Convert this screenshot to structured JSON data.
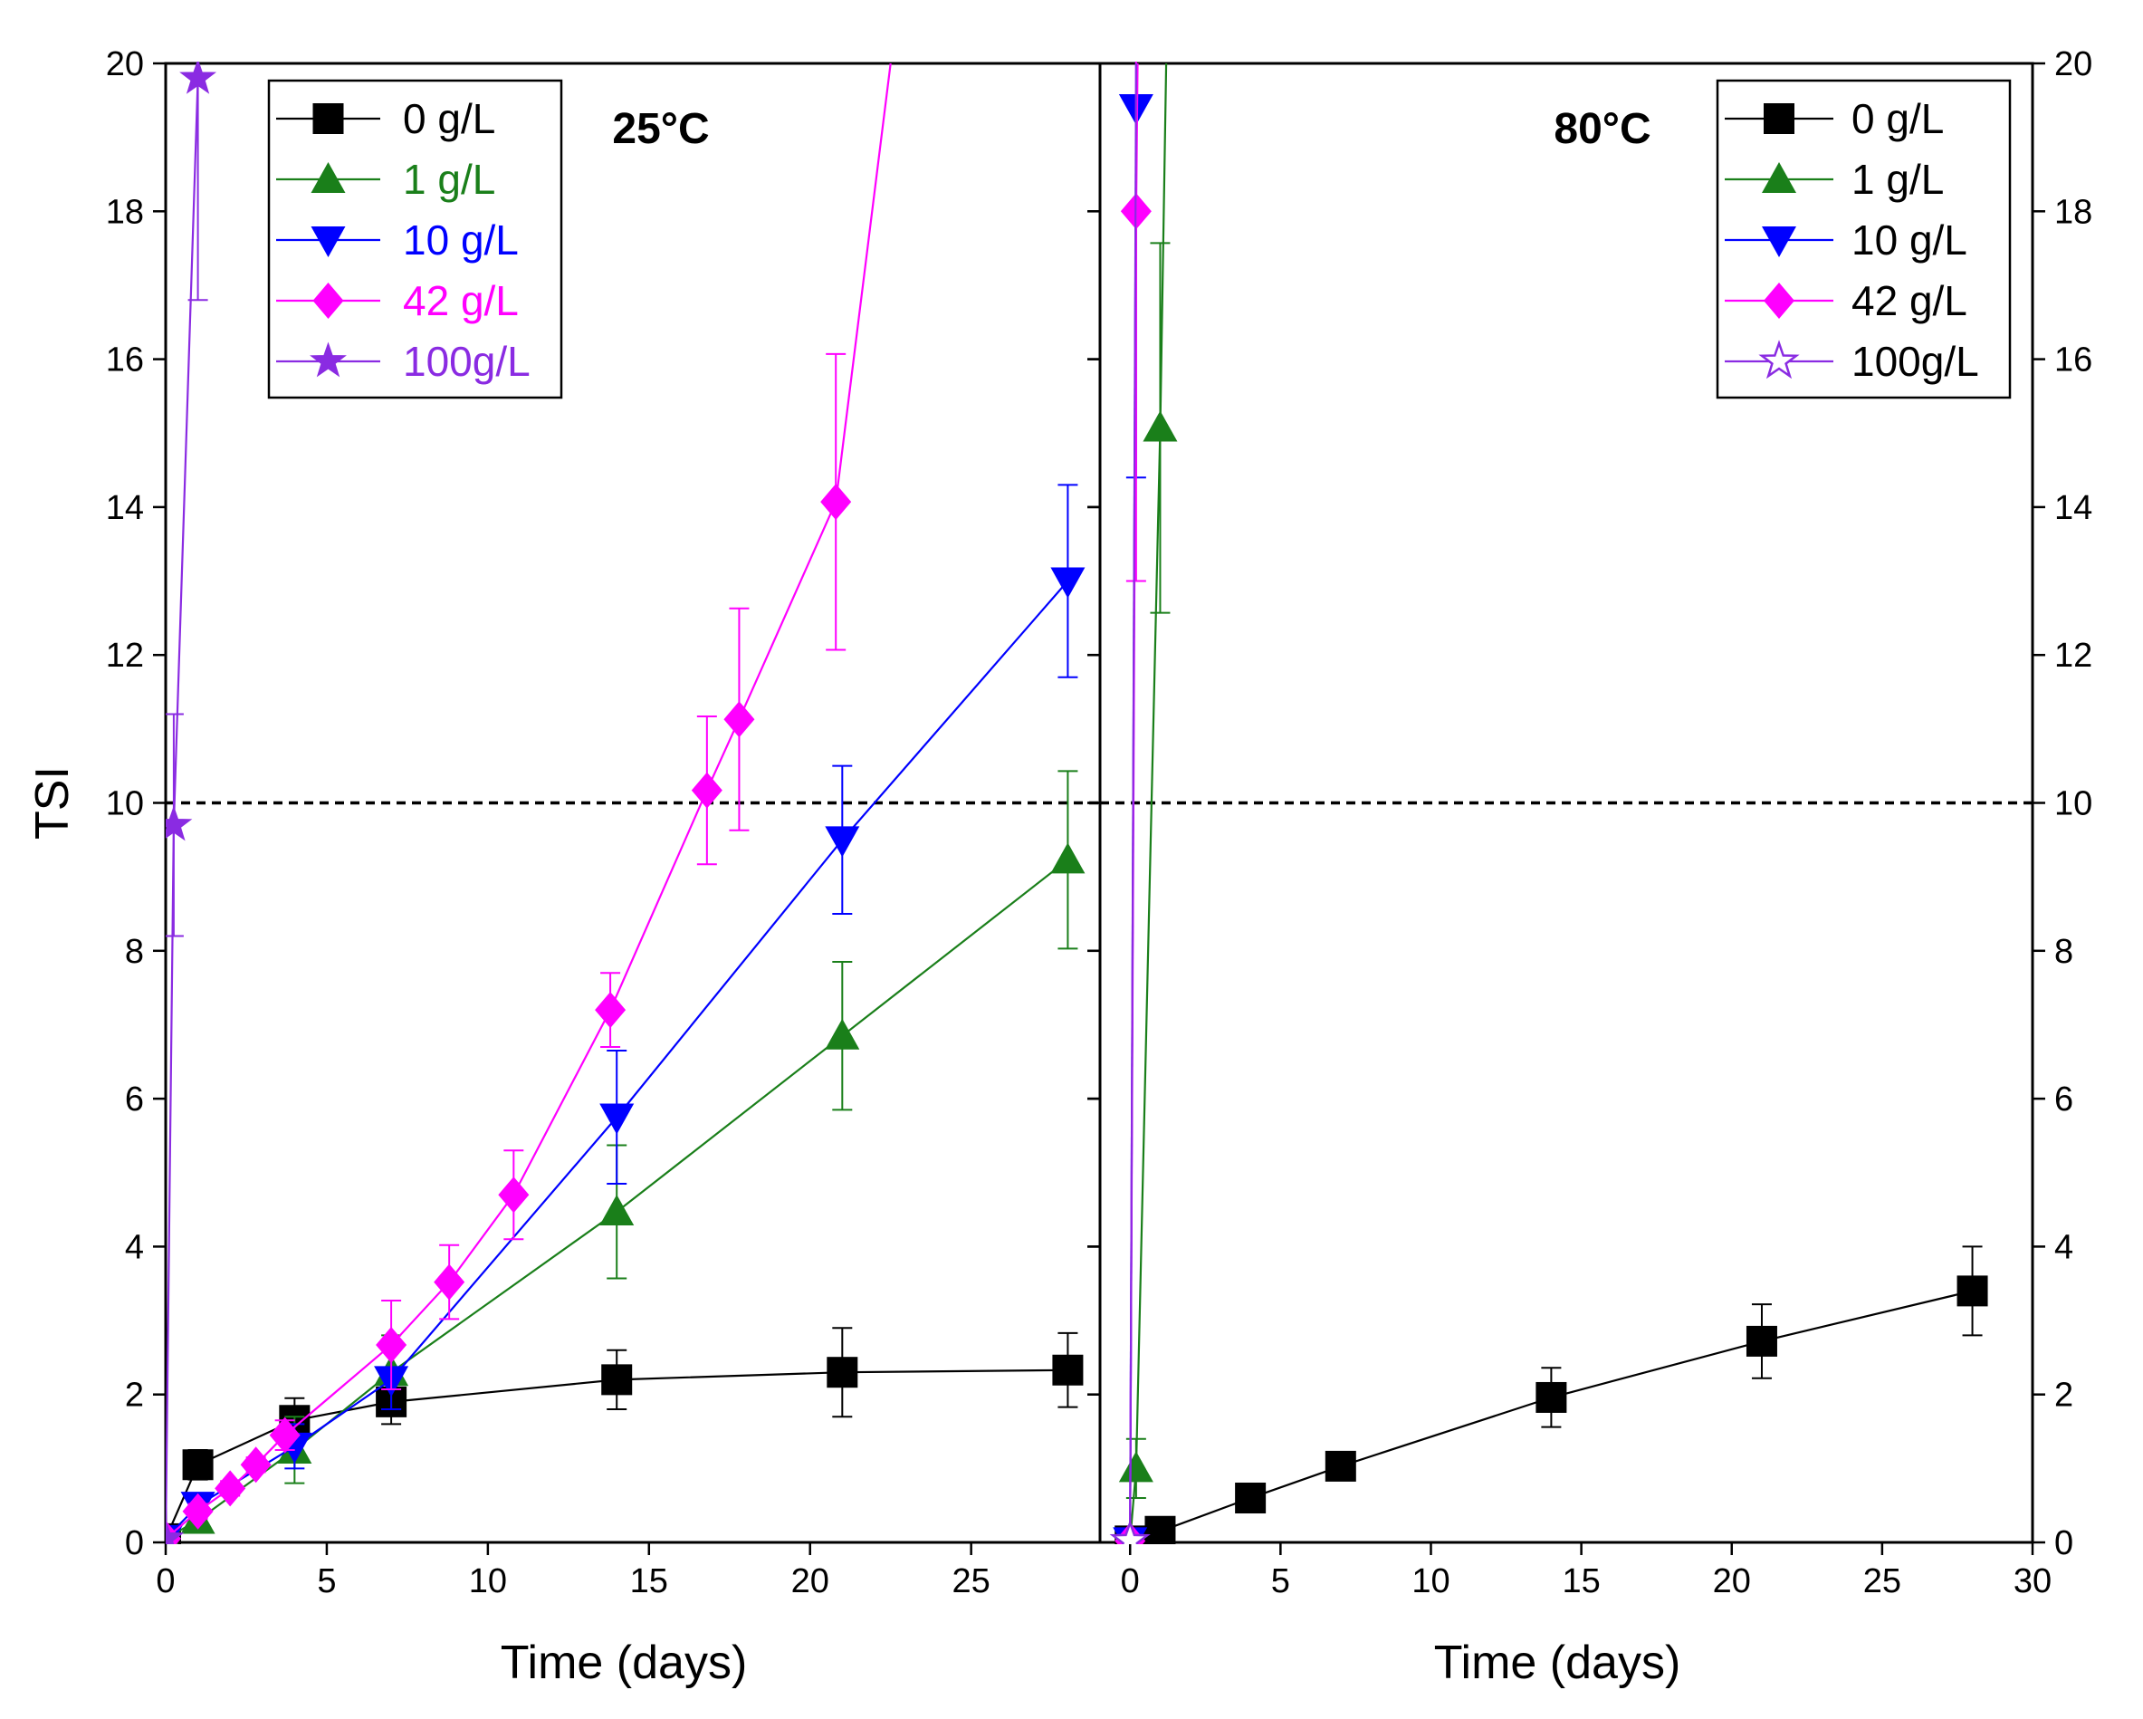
{
  "colors": {
    "axis": "#000000",
    "threshold": "#000000",
    "c0": "#000000",
    "c1": "#1a7f1a",
    "c10": "#0000ff",
    "c42": "#ff00ff",
    "c100": "#8a2be2"
  },
  "chart_data": [
    {
      "type": "line",
      "panel": "left",
      "title": "25°C",
      "xlabel": "Time (days)",
      "ylabel": "TSI",
      "xlim": [
        0,
        29
      ],
      "ylim": [
        0,
        20
      ],
      "xticks": [
        0,
        5,
        10,
        15,
        20,
        25
      ],
      "yticks": [
        0,
        2,
        4,
        6,
        8,
        10,
        12,
        14,
        16,
        18,
        20
      ],
      "threshold_y": 10,
      "legend_position": "top-left",
      "series": [
        {
          "name": "0 g/L",
          "marker": "square",
          "color_key": "c0",
          "x": [
            0,
            1,
            4,
            7,
            14,
            21,
            28
          ],
          "y": [
            0.05,
            1.05,
            1.65,
            1.9,
            2.2,
            2.3,
            2.33
          ],
          "err": [
            0,
            0.2,
            0.3,
            0.3,
            0.4,
            0.6,
            0.5
          ]
        },
        {
          "name": "1 g/L",
          "marker": "triangle-up",
          "color_key": "c1",
          "x": [
            0,
            1,
            4,
            7,
            14,
            21,
            28
          ],
          "y": [
            0.05,
            0.3,
            1.25,
            2.3,
            4.47,
            6.85,
            9.23
          ],
          "err": [
            0,
            0.1,
            0.45,
            0.5,
            0.9,
            1.0,
            1.2
          ]
        },
        {
          "name": "10 g/L",
          "marker": "triangle-down",
          "color_key": "c10",
          "x": [
            0,
            1,
            4,
            7,
            14,
            21,
            28
          ],
          "y": [
            0.05,
            0.5,
            1.3,
            2.2,
            5.75,
            9.5,
            13.0
          ],
          "err": [
            0,
            0.15,
            0.3,
            0.4,
            0.9,
            1.0,
            1.3
          ]
        },
        {
          "name": "42 g/L",
          "marker": "diamond",
          "color_key": "c42",
          "x": [
            0,
            1,
            2,
            2.8,
            3.7,
            7,
            8.8,
            10.8,
            13.8,
            16.8,
            17.8,
            20.8,
            22.5
          ],
          "y": [
            0.05,
            0.42,
            0.73,
            1.05,
            1.45,
            2.67,
            3.52,
            4.7,
            7.2,
            10.17,
            11.13,
            14.07,
            20.0
          ],
          "err": [
            0,
            0.1,
            0.1,
            0.1,
            0.2,
            0.6,
            0.5,
            0.6,
            0.5,
            1.0,
            1.5,
            2.0,
            0
          ]
        },
        {
          "name": "100g/L",
          "marker": "star",
          "color_key": "c100",
          "x": [
            0,
            0.25,
            1
          ],
          "y": [
            0.05,
            9.7,
            19.8
          ],
          "err": [
            0,
            1.5,
            3.0
          ]
        }
      ]
    },
    {
      "type": "line",
      "panel": "right",
      "title": "80°C",
      "xlabel": "Time (days)",
      "ylabel": "",
      "xlim": [
        -1,
        30
      ],
      "ylim": [
        0,
        20
      ],
      "xticks": [
        0,
        5,
        10,
        15,
        20,
        25,
        30
      ],
      "yticks": [
        0,
        2,
        4,
        6,
        8,
        10,
        12,
        14,
        16,
        18,
        20
      ],
      "threshold_y": 10,
      "legend_position": "top-right",
      "series": [
        {
          "name": "0 g/L",
          "marker": "square",
          "color_key": "c0",
          "x": [
            0,
            1,
            4,
            7,
            14,
            21,
            28
          ],
          "y": [
            0.02,
            0.15,
            0.6,
            1.03,
            1.96,
            2.72,
            3.4
          ],
          "err": [
            0,
            0,
            0,
            0,
            0.4,
            0.5,
            0.6
          ]
        },
        {
          "name": "1 g/L",
          "marker": "triangle-up",
          "color_key": "c1",
          "x": [
            0,
            0.2,
            1,
            1.2
          ],
          "y": [
            0.02,
            1.0,
            15.07,
            20.0
          ],
          "err": [
            0,
            0.4,
            2.5,
            0
          ]
        },
        {
          "name": "10 g/L",
          "marker": "triangle-down",
          "color_key": "c10",
          "x": [
            0,
            0.2
          ],
          "y": [
            0.02,
            19.4
          ],
          "err": [
            0,
            5.0
          ]
        },
        {
          "name": "42 g/L",
          "marker": "diamond",
          "color_key": "c42",
          "x": [
            0,
            0.2,
            0.25
          ],
          "y": [
            0.02,
            18.0,
            20.0
          ],
          "err": [
            0,
            5.0,
            0
          ]
        },
        {
          "name": "100g/L",
          "marker": "star-open",
          "color_key": "c100",
          "x": [
            0,
            0.2
          ],
          "y": [
            0.02,
            20.0
          ],
          "err": [
            0,
            0
          ]
        }
      ]
    }
  ]
}
